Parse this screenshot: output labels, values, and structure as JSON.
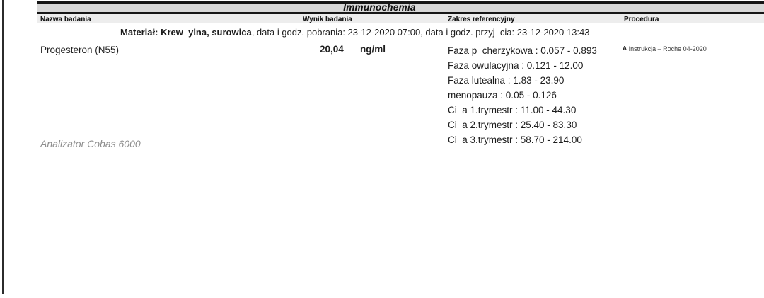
{
  "report": {
    "section_title": "Immunochemia",
    "column_headers": [
      "Nazwa badania",
      "Wynik badania",
      "Zakres referencyjny",
      "Procedura"
    ],
    "material_line": {
      "label_bold": "Materiał: Krew  ylna, surowica",
      "details": ", data i godz. pobrania: 23-12-2020 07:00, data i godz. przyj  cia: 23-12-2020 13:43"
    },
    "result_row": {
      "test_name": "Progesteron (N55)",
      "result_value": "20,04",
      "result_unit": "ng/ml",
      "reference_ranges": [
        "Faza p  cherzykowa : 0.057 - 0.893",
        "Faza owulacyjna : 0.121 - 12.00",
        "Faza lutealna : 1.83 - 23.90",
        "menopauza : 0.05 - 0.126",
        "Ci  a 1.trymestr : 11.00 - 44.30",
        "Ci  a 2.trymestr : 25.40 - 83.30",
        "Ci  a 3.trymestr : 58.70 - 214.00"
      ],
      "procedure_marker": "A",
      "procedure_text": " Instrukcja – Roche 04-2020"
    },
    "analyzer_note": "Analizator Cobas 6000",
    "colors": {
      "header_bar_bg": "#d8d8d8",
      "subheader_bar_bg": "#ededed",
      "rule_color": "#161616",
      "text": "#1f1f1f",
      "muted_text": "#8d8d8d"
    }
  }
}
